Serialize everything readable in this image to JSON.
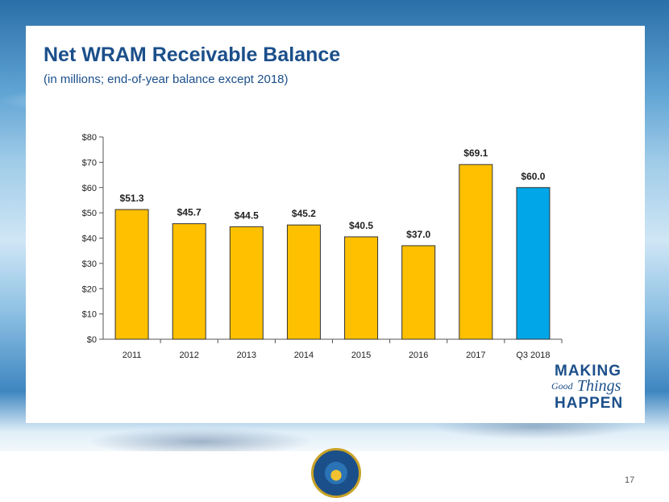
{
  "slide": {
    "title": "Net WRAM Receivable Balance",
    "subtitle": "(in millions; end-of-year balance except 2018)",
    "page_number": "17",
    "logo": {
      "line1": "MAKING",
      "line2a": "Good",
      "line2b": "Things",
      "line3": "HAPPEN"
    },
    "seal_text": "CALIFORNIA WATER SERVICE GROUP"
  },
  "colors": {
    "bar_default": "#FFC000",
    "bar_highlight": "#00A6E8",
    "title": "#1B4F8A"
  },
  "chart_data": {
    "type": "bar",
    "categories": [
      "2011",
      "2012",
      "2013",
      "2014",
      "2015",
      "2016",
      "2017",
      "Q3 2018"
    ],
    "values": [
      51.3,
      45.7,
      44.5,
      45.2,
      40.5,
      37.0,
      69.1,
      60.0
    ],
    "data_labels": [
      "$51.3",
      "$45.7",
      "$44.5",
      "$45.2",
      "$40.5",
      "$37.0",
      "$69.1",
      "$60.0"
    ],
    "highlight_index": 7,
    "ylim": [
      0,
      80
    ],
    "yticks": [
      0,
      10,
      20,
      30,
      40,
      50,
      60,
      70,
      80
    ],
    "ytick_labels": [
      "$0",
      "$10",
      "$20",
      "$30",
      "$40",
      "$50",
      "$60",
      "$70",
      "$80"
    ],
    "grid": false,
    "xlabel": "",
    "ylabel": ""
  }
}
